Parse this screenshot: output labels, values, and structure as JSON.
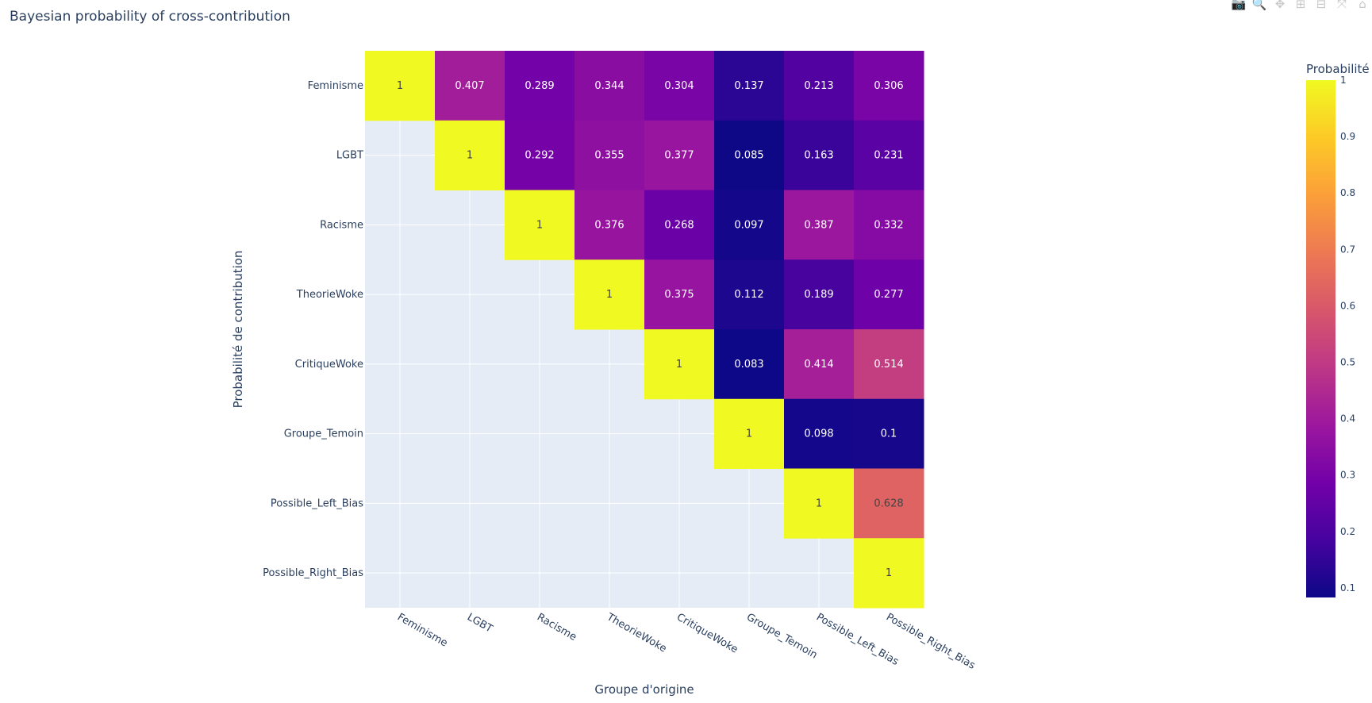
{
  "toolbar": {
    "buttons": [
      {
        "name": "camera-icon",
        "glyph": "📷"
      },
      {
        "name": "zoom-icon",
        "glyph": "🔍"
      },
      {
        "name": "pan-icon",
        "glyph": "✥"
      },
      {
        "name": "zoom-in-icon",
        "glyph": "⊞"
      },
      {
        "name": "zoom-out-icon",
        "glyph": "⊟"
      },
      {
        "name": "autoscale-icon",
        "glyph": "⤧"
      },
      {
        "name": "home-icon",
        "glyph": "⌂"
      }
    ]
  },
  "chart_data": {
    "type": "heatmap",
    "title": "Bayesian probability of cross-contribution",
    "xlabel": "Groupe d'origine",
    "ylabel": "Probabilité de contribution",
    "categories": [
      "Feminisme",
      "LGBT",
      "Racisme",
      "TheorieWoke",
      "CritiqueWoke",
      "Groupe_Temoin",
      "Possible_Left_Bias",
      "Possible_Right_Bias"
    ],
    "z": [
      [
        1,
        0.407,
        0.289,
        0.344,
        0.304,
        0.137,
        0.213,
        0.306
      ],
      [
        null,
        1,
        0.292,
        0.355,
        0.377,
        0.085,
        0.163,
        0.231
      ],
      [
        null,
        null,
        1,
        0.376,
        0.268,
        0.097,
        0.387,
        0.332
      ],
      [
        null,
        null,
        null,
        1,
        0.375,
        0.112,
        0.189,
        0.277
      ],
      [
        null,
        null,
        null,
        null,
        1,
        0.083,
        0.414,
        0.514
      ],
      [
        null,
        null,
        null,
        null,
        null,
        1,
        0.098,
        0.1
      ],
      [
        null,
        null,
        null,
        null,
        null,
        null,
        1,
        0.628
      ],
      [
        null,
        null,
        null,
        null,
        null,
        null,
        null,
        1
      ]
    ],
    "colorscale": "plasma",
    "colorbar": {
      "title": "Probabilité",
      "range": [
        0.083,
        1
      ],
      "ticks": [
        0.1,
        0.2,
        0.3,
        0.4,
        0.5,
        0.6,
        0.7,
        0.8,
        0.9,
        1
      ]
    },
    "grid": true
  }
}
